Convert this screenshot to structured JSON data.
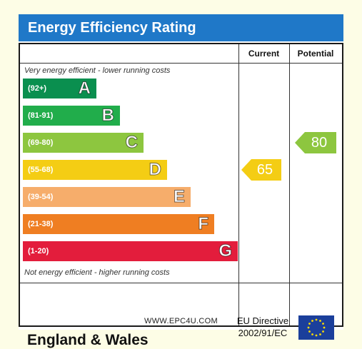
{
  "title": "Energy Efficiency Rating",
  "columns": {
    "current": "Current",
    "potential": "Potential"
  },
  "captions": {
    "top": "Very energy efficient - lower running costs",
    "bottom": "Not energy efficient - higher running costs"
  },
  "footer": {
    "country": "England & Wales",
    "directive_line1": "EU Directive",
    "directive_line2": "2002/91/EC",
    "website": "WWW.EPC4U.COM"
  },
  "chart_data": {
    "type": "bar",
    "title": "Energy Efficiency Rating",
    "bands": [
      {
        "letter": "A",
        "range": "(92+)",
        "min": 92,
        "max": 100,
        "color": "#0a8f4f"
      },
      {
        "letter": "B",
        "range": "(81-91)",
        "min": 81,
        "max": 91,
        "color": "#21ad4b"
      },
      {
        "letter": "C",
        "range": "(69-80)",
        "min": 69,
        "max": 80,
        "color": "#8dc63f"
      },
      {
        "letter": "D",
        "range": "(55-68)",
        "min": 55,
        "max": 68,
        "color": "#f4cd14"
      },
      {
        "letter": "E",
        "range": "(39-54)",
        "min": 39,
        "max": 54,
        "color": "#f6ad6b"
      },
      {
        "letter": "F",
        "range": "(21-38)",
        "min": 21,
        "max": 38,
        "color": "#ef7e22"
      },
      {
        "letter": "G",
        "range": "(1-20)",
        "min": 1,
        "max": 20,
        "color": "#e31d3c"
      }
    ],
    "current": {
      "value": 65,
      "band": "D",
      "color": "#f4cd14"
    },
    "potential": {
      "value": 80,
      "band": "C",
      "color": "#8dc63f"
    }
  }
}
